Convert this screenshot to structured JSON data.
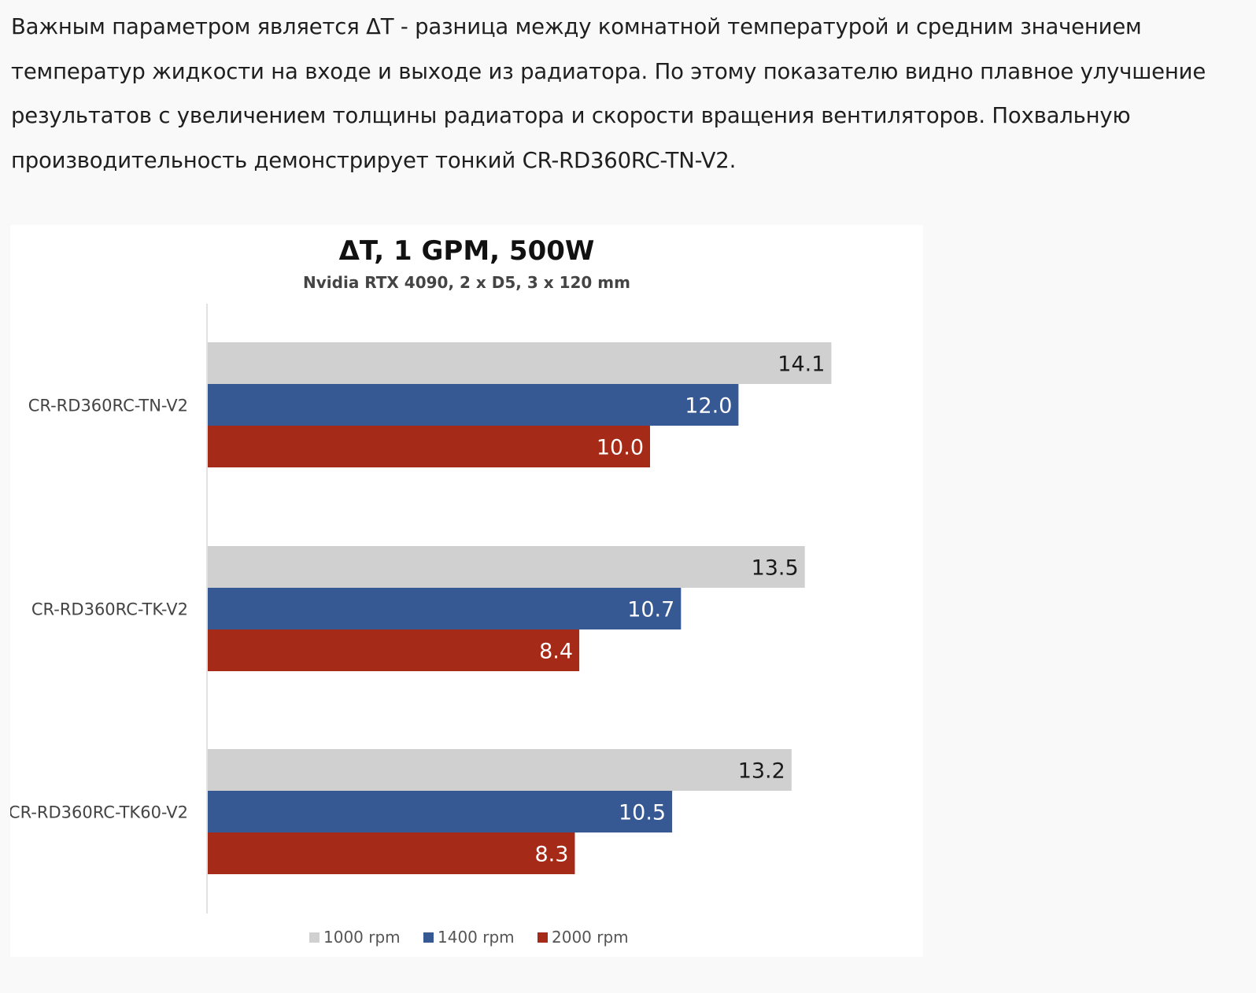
{
  "article": {
    "lines": [
      "Важным параметром является ΔТ - разница между комнатной температурой и средним значением",
      "температур жидкости на входе и выходе из радиатора. По этому показателю видно плавное улучшение",
      "результатов с увеличением толщины радиатора и скорости вращения вентиляторов. Похвальную",
      "производительность демонстрирует тонкий CR-RD360RC-TN-V2."
    ]
  },
  "chart_data": {
    "type": "bar",
    "orientation": "horizontal",
    "title": "ΔT, 1 GPM, 500W",
    "subtitle": "Nvidia RTX 4090, 2 x D5, 3 x 120 mm",
    "xlabel": "",
    "ylabel": "",
    "xlim": [
      0,
      15
    ],
    "grid": false,
    "legend_position": "bottom",
    "categories": [
      "CR-RD360RC-TN-V2",
      "CR-RD360RC-TK-V2",
      "CR-RD360RC-TK60-V2"
    ],
    "series": [
      {
        "name": "1000 rpm",
        "color": "#d0d0d0",
        "label_color": "#1a1a1a",
        "values": [
          14.1,
          13.5,
          13.2
        ],
        "labels": [
          "14.1",
          "13.5",
          "13.2"
        ]
      },
      {
        "name": "1400 rpm",
        "color": "#365893",
        "label_color": "#ffffff",
        "values": [
          12.0,
          10.7,
          10.5
        ],
        "labels": [
          "12.0",
          "10.7",
          "10.5"
        ]
      },
      {
        "name": "2000 rpm",
        "color": "#a52a17",
        "label_color": "#ffffff",
        "values": [
          10.0,
          8.4,
          8.3
        ],
        "labels": [
          "10.0",
          "8.4",
          "8.3"
        ]
      }
    ]
  }
}
